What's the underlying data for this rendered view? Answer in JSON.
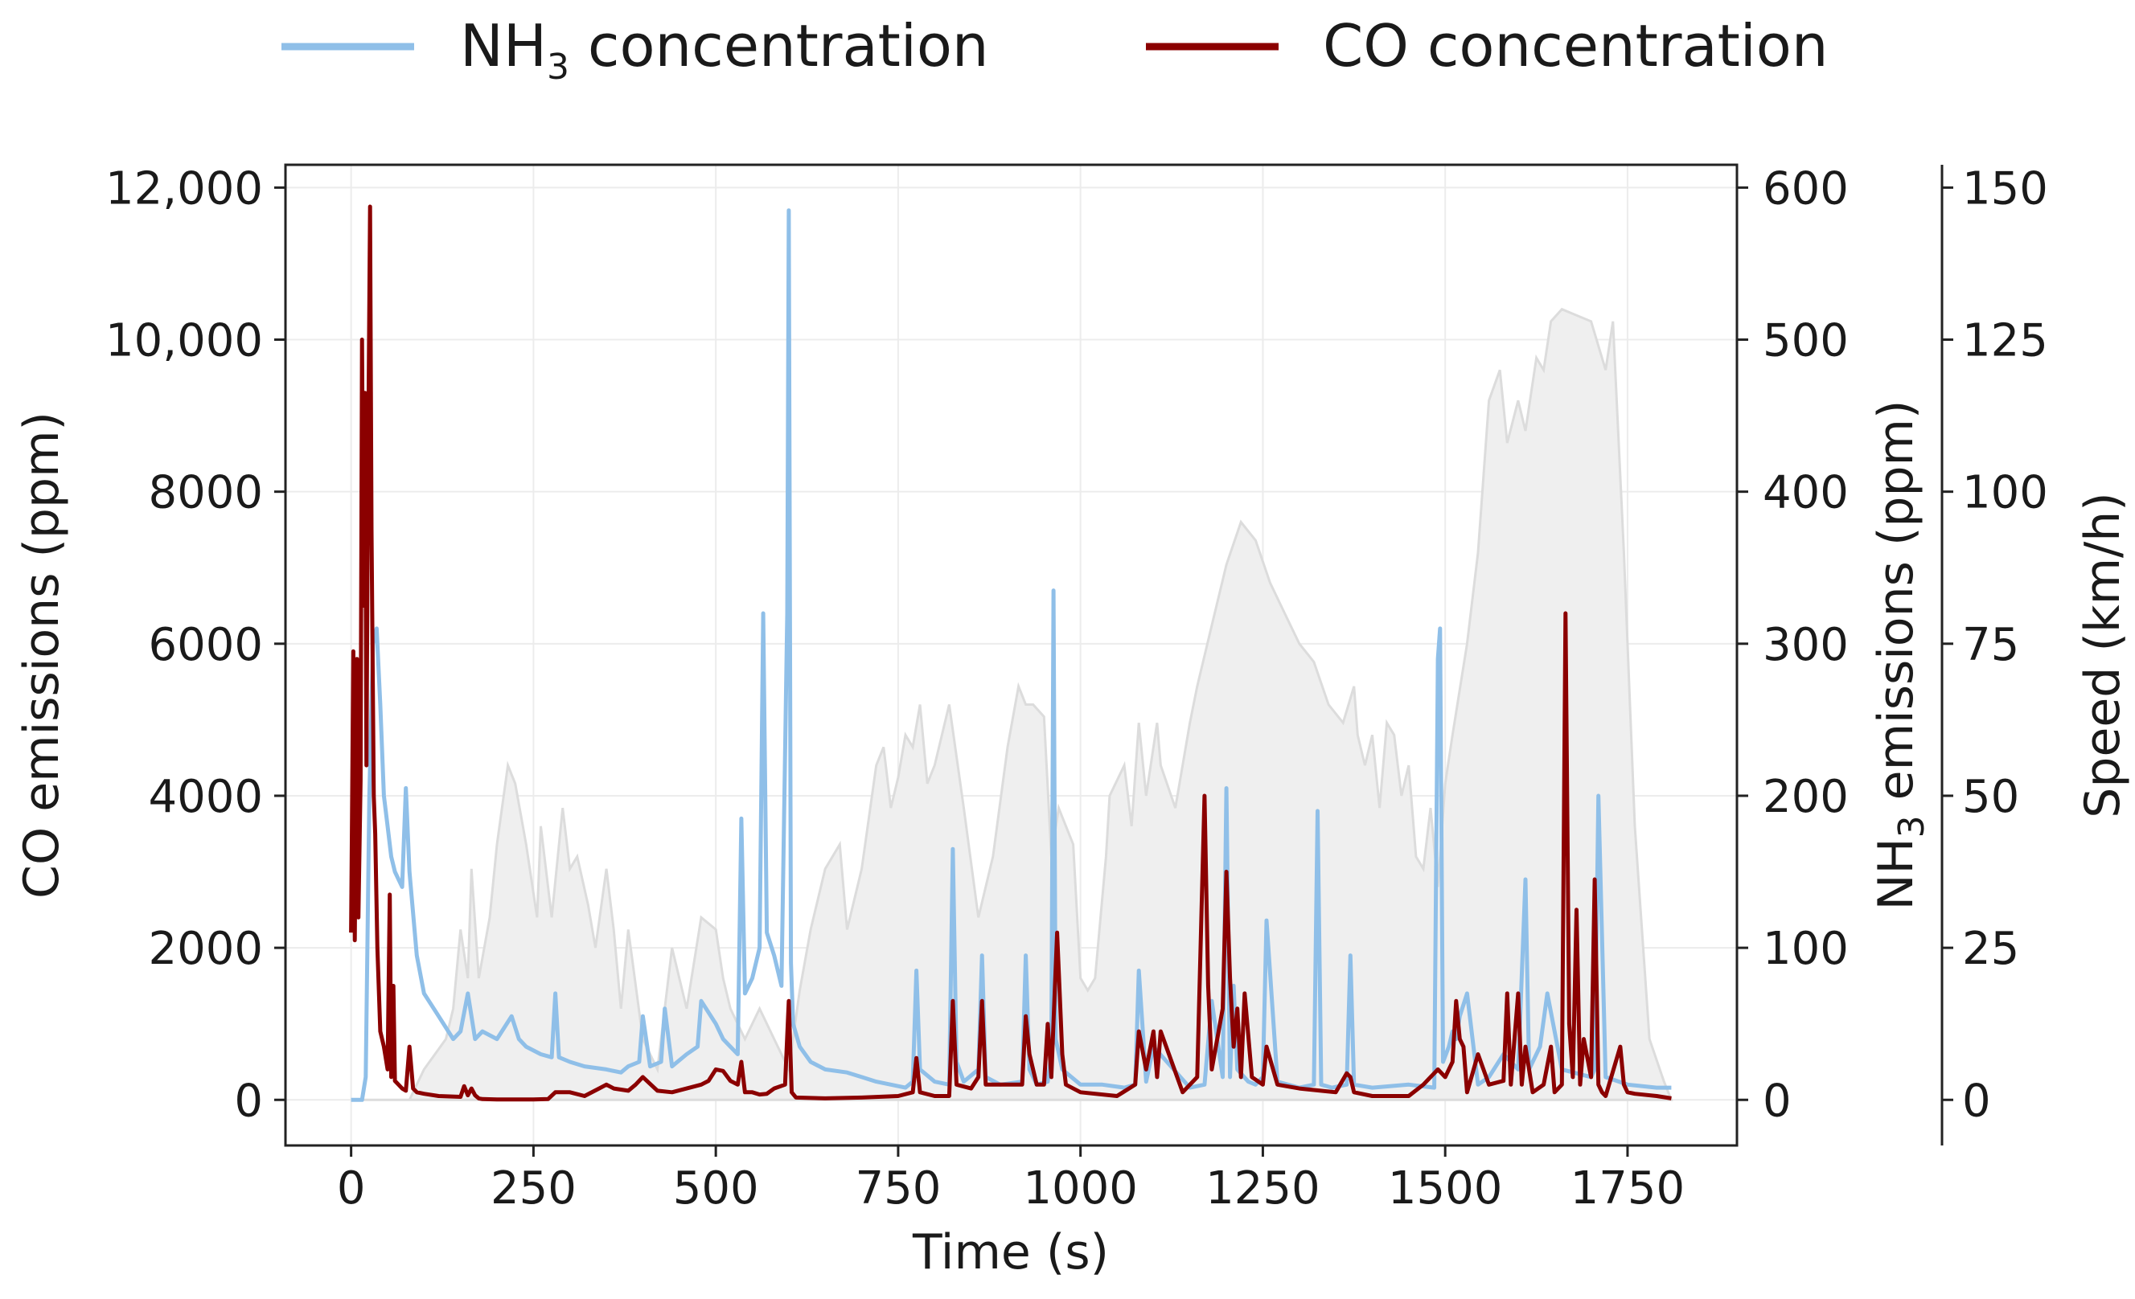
{
  "chart_data": {
    "type": "line",
    "xlabel": "Time (s)",
    "ylabel_left": "CO emissions (ppm)",
    "ylabel_right": {
      "prefix": "NH",
      "sub": "3",
      "suffix": " emissions (ppm)"
    },
    "ylabel_speed": "Speed (km/h)",
    "xlim": [
      -90,
      1900
    ],
    "ylim_co": [
      -600,
      12300
    ],
    "ylim_nh3": [
      -30,
      615
    ],
    "ylim_speed": [
      -7.5,
      153.75
    ],
    "x_ticks": [
      "0",
      "250",
      "500",
      "750",
      "1000",
      "1250",
      "1500",
      "1750"
    ],
    "x_tick_values": [
      0,
      250,
      500,
      750,
      1000,
      1250,
      1500,
      1750
    ],
    "co_ticks": [
      "0",
      "2000",
      "4000",
      "6000",
      "8000",
      "10,000",
      "12,000"
    ],
    "co_tick_values": [
      0,
      2000,
      4000,
      6000,
      8000,
      10000,
      12000
    ],
    "nh3_ticks": [
      "0",
      "100",
      "200",
      "300",
      "400",
      "500",
      "600"
    ],
    "nh3_tick_values": [
      0,
      100,
      200,
      300,
      400,
      500,
      600
    ],
    "speed_ticks": [
      "0",
      "25",
      "50",
      "75",
      "100",
      "125",
      "150"
    ],
    "speed_tick_values": [
      0,
      25,
      50,
      75,
      100,
      125,
      150
    ],
    "grid": true,
    "legend_position": "top-center",
    "colors": {
      "nh3": "#8fbfe8",
      "co": "#8b0000",
      "speed": "#efefef",
      "speed_edge": "#dcdcdc"
    },
    "series": [
      {
        "name": "NH3 concentration",
        "legend": {
          "prefix": "NH",
          "sub": "3",
          "suffix": " concentration"
        },
        "axis": "nh3",
        "x": [
          0,
          15,
          20,
          25,
          30,
          35,
          40,
          45,
          50,
          55,
          60,
          70,
          75,
          80,
          90,
          100,
          120,
          140,
          150,
          160,
          165,
          170,
          180,
          200,
          220,
          230,
          240,
          260,
          275,
          280,
          285,
          300,
          320,
          350,
          370,
          380,
          395,
          400,
          410,
          425,
          430,
          440,
          460,
          475,
          480,
          500,
          510,
          520,
          530,
          535,
          540,
          550,
          560,
          565,
          570,
          580,
          590,
          598,
          600,
          603,
          606,
          615,
          630,
          650,
          680,
          700,
          720,
          740,
          760,
          770,
          775,
          780,
          800,
          820,
          825,
          830,
          840,
          860,
          865,
          870,
          890,
          920,
          925,
          930,
          940,
          955,
          960,
          963,
          966,
          975,
          1000,
          1030,
          1060,
          1075,
          1080,
          1090,
          1100,
          1150,
          1170,
          1180,
          1195,
          1200,
          1205,
          1210,
          1215,
          1230,
          1240,
          1250,
          1255,
          1270,
          1300,
          1320,
          1325,
          1330,
          1345,
          1365,
          1370,
          1375,
          1400,
          1450,
          1485,
          1490,
          1493,
          1497,
          1505,
          1510,
          1515,
          1520,
          1530,
          1545,
          1560,
          1580,
          1600,
          1610,
          1615,
          1630,
          1640,
          1660,
          1700,
          1705,
          1710,
          1720,
          1750,
          1790,
          1810
        ],
        "values": [
          0,
          0,
          15,
          200,
          300,
          310,
          260,
          200,
          180,
          160,
          150,
          140,
          205,
          150,
          95,
          70,
          55,
          40,
          45,
          70,
          55,
          40,
          45,
          40,
          55,
          40,
          35,
          30,
          28,
          70,
          28,
          25,
          22,
          20,
          18,
          22,
          25,
          55,
          22,
          25,
          60,
          22,
          30,
          35,
          65,
          50,
          40,
          35,
          30,
          185,
          70,
          80,
          100,
          320,
          110,
          95,
          75,
          320,
          585,
          90,
          50,
          35,
          25,
          20,
          18,
          15,
          12,
          10,
          8,
          12,
          85,
          20,
          12,
          10,
          165,
          25,
          12,
          20,
          95,
          15,
          10,
          12,
          95,
          20,
          10,
          12,
          30,
          335,
          40,
          20,
          10,
          10,
          8,
          10,
          85,
          12,
          35,
          8,
          10,
          65,
          15,
          205,
          15,
          75,
          20,
          12,
          10,
          15,
          118,
          12,
          8,
          10,
          190,
          10,
          8,
          10,
          95,
          10,
          8,
          10,
          8,
          290,
          310,
          25,
          35,
          45,
          40,
          55,
          70,
          10,
          15,
          30,
          20,
          145,
          20,
          35,
          70,
          20,
          15,
          20,
          200,
          15,
          10,
          8,
          8
        ]
      },
      {
        "name": "CO concentration",
        "axis": "co",
        "x": [
          0,
          3,
          5,
          8,
          10,
          13,
          15,
          17,
          19,
          21,
          23,
          26,
          28,
          31,
          33,
          36,
          40,
          45,
          50,
          53,
          55,
          58,
          60,
          65,
          70,
          75,
          80,
          85,
          90,
          100,
          120,
          150,
          155,
          160,
          165,
          170,
          175,
          180,
          200,
          250,
          270,
          280,
          300,
          320,
          340,
          350,
          360,
          380,
          390,
          400,
          420,
          440,
          460,
          480,
          490,
          500,
          510,
          520,
          530,
          535,
          540,
          550,
          560,
          570,
          580,
          595,
          600,
          604,
          610,
          650,
          700,
          750,
          770,
          775,
          780,
          800,
          820,
          825,
          830,
          850,
          860,
          865,
          870,
          900,
          920,
          925,
          930,
          940,
          950,
          955,
          960,
          965,
          968,
          975,
          980,
          1000,
          1050,
          1075,
          1080,
          1090,
          1100,
          1105,
          1110,
          1140,
          1160,
          1170,
          1175,
          1180,
          1195,
          1200,
          1205,
          1210,
          1215,
          1220,
          1225,
          1235,
          1250,
          1255,
          1270,
          1300,
          1350,
          1365,
          1370,
          1375,
          1400,
          1450,
          1470,
          1490,
          1500,
          1510,
          1515,
          1520,
          1525,
          1530,
          1545,
          1560,
          1580,
          1585,
          1590,
          1600,
          1605,
          1610,
          1620,
          1635,
          1645,
          1650,
          1660,
          1665,
          1670,
          1675,
          1680,
          1685,
          1690,
          1700,
          1705,
          1710,
          1715,
          1720,
          1740,
          1745,
          1750,
          1760,
          1790,
          1810
        ],
        "values": [
          2200,
          5900,
          2100,
          5800,
          2400,
          4200,
          10000,
          6500,
          9300,
          4400,
          8000,
          11750,
          7500,
          4000,
          3500,
          2000,
          900,
          700,
          400,
          2700,
          300,
          1500,
          250,
          200,
          150,
          120,
          700,
          150,
          100,
          80,
          50,
          40,
          180,
          60,
          150,
          60,
          20,
          10,
          5,
          5,
          10,
          100,
          100,
          50,
          150,
          200,
          150,
          120,
          200,
          300,
          120,
          100,
          150,
          200,
          250,
          400,
          380,
          250,
          200,
          500,
          100,
          100,
          70,
          80,
          150,
          200,
          1300,
          100,
          30,
          20,
          30,
          50,
          100,
          550,
          100,
          50,
          50,
          1300,
          200,
          150,
          300,
          1300,
          200,
          200,
          200,
          1100,
          600,
          200,
          200,
          1000,
          300,
          1500,
          2200,
          600,
          200,
          100,
          50,
          200,
          900,
          400,
          900,
          300,
          900,
          100,
          300,
          4000,
          1500,
          400,
          1200,
          3000,
          1600,
          700,
          1200,
          300,
          1400,
          300,
          200,
          700,
          200,
          150,
          100,
          350,
          300,
          100,
          50,
          50,
          200,
          400,
          300,
          500,
          1300,
          800,
          700,
          100,
          600,
          200,
          250,
          1400,
          200,
          1400,
          200,
          700,
          100,
          200,
          700,
          100,
          200,
          6400,
          1000,
          300,
          2500,
          200,
          800,
          300,
          2900,
          200,
          100,
          50,
          700,
          200,
          100,
          80,
          50,
          20
        ]
      },
      {
        "name": "Speed",
        "axis": "speed",
        "x": [
          0,
          80,
          100,
          130,
          140,
          150,
          160,
          165,
          175,
          190,
          200,
          215,
          225,
          240,
          255,
          260,
          275,
          290,
          300,
          310,
          325,
          335,
          350,
          360,
          370,
          380,
          400,
          420,
          440,
          460,
          480,
          500,
          510,
          520,
          540,
          560,
          580,
          600,
          615,
          630,
          650,
          670,
          680,
          700,
          720,
          730,
          740,
          750,
          760,
          770,
          780,
          790,
          800,
          820,
          840,
          860,
          880,
          900,
          915,
          925,
          935,
          950,
          960,
          970,
          990,
          1000,
          1010,
          1020,
          1035,
          1040,
          1060,
          1070,
          1080,
          1090,
          1100,
          1105,
          1110,
          1130,
          1150,
          1160,
          1180,
          1200,
          1220,
          1240,
          1260,
          1280,
          1300,
          1320,
          1340,
          1360,
          1375,
          1380,
          1390,
          1400,
          1410,
          1420,
          1430,
          1440,
          1450,
          1460,
          1470,
          1480,
          1490,
          1500,
          1510,
          1530,
          1545,
          1560,
          1575,
          1585,
          1600,
          1610,
          1625,
          1635,
          1645,
          1660,
          1700,
          1720,
          1730,
          1745,
          1760,
          1780,
          1800,
          1810
        ],
        "values": [
          0,
          0,
          5,
          10,
          15,
          28,
          20,
          38,
          20,
          30,
          42,
          55,
          52,
          42,
          30,
          45,
          30,
          48,
          38,
          40,
          32,
          25,
          38,
          28,
          15,
          28,
          10,
          5,
          25,
          15,
          30,
          28,
          20,
          15,
          10,
          15,
          10,
          5,
          18,
          28,
          38,
          42,
          28,
          38,
          55,
          58,
          48,
          53,
          60,
          58,
          65,
          52,
          55,
          65,
          48,
          30,
          40,
          58,
          68,
          65,
          65,
          63,
          40,
          48,
          42,
          20,
          18,
          20,
          40,
          50,
          55,
          45,
          62,
          50,
          58,
          62,
          55,
          48,
          62,
          68,
          78,
          88,
          95,
          92,
          85,
          80,
          75,
          72,
          65,
          62,
          68,
          60,
          55,
          60,
          48,
          62,
          60,
          50,
          55,
          40,
          38,
          48,
          35,
          52,
          60,
          75,
          90,
          115,
          120,
          108,
          115,
          110,
          122,
          120,
          128,
          130,
          128,
          120,
          128,
          90,
          45,
          10,
          3,
          0
        ]
      }
    ]
  }
}
